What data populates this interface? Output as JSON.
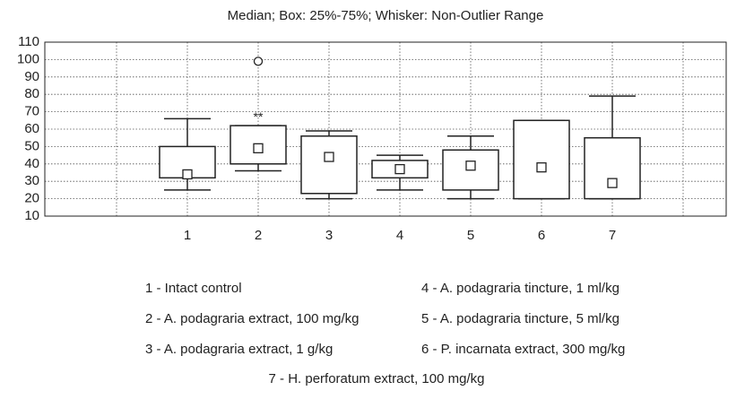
{
  "chart_data": {
    "type": "box",
    "title": "Median; Box: 25%-75%; Whisker: Non-Outlier Range",
    "categories": [
      "1",
      "2",
      "3",
      "4",
      "5",
      "6",
      "7"
    ],
    "whisker_low": [
      25,
      36,
      20,
      25,
      20,
      20,
      20
    ],
    "q1": [
      32,
      40,
      23,
      32,
      25,
      20,
      20
    ],
    "median": [
      34,
      49,
      44,
      37,
      39,
      38,
      29
    ],
    "q3": [
      50,
      62,
      56,
      42,
      48,
      65,
      55
    ],
    "whisker_high": [
      66,
      62,
      59,
      45,
      56,
      65,
      79
    ],
    "outliers": [
      [],
      [
        99
      ],
      [],
      [],
      [],
      [],
      []
    ],
    "annotations": [
      {
        "text": "**",
        "x": "2"
      }
    ],
    "ylim": [
      10,
      110
    ],
    "yticks": [
      10,
      20,
      30,
      40,
      50,
      60,
      70,
      80,
      90,
      100,
      110
    ],
    "grid": true,
    "legend_items": [
      "1 - Intact control",
      "2 - A. podagraria extract, 100 mg/kg",
      "3 - A. podagraria extract, 1 g/kg",
      "4 - A. podagraria tincture, 1 ml/kg",
      "5 - A. podagraria tincture, 5 ml/kg",
      "6 - P. incarnata extract, 300 mg/kg",
      "7 - H. perforatum extract, 100 mg/kg"
    ]
  }
}
